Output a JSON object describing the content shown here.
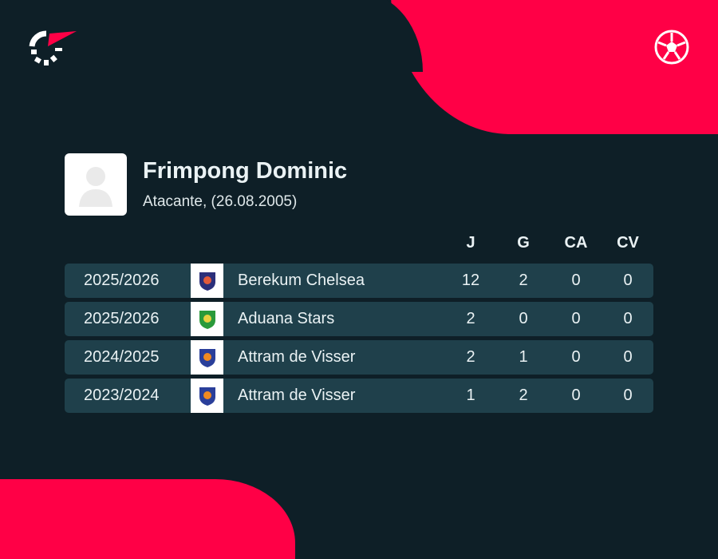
{
  "colors": {
    "accent": "#ff0046",
    "background": "#0e1f27",
    "row": "#1f404b"
  },
  "icons": {
    "logo": "flashscore-logo",
    "sport": "football-icon",
    "avatar": "player-silhouette"
  },
  "player": {
    "name": "Frimpong Dominic",
    "details": "Atacante, (26.08.2005)"
  },
  "columns": {
    "j": "J",
    "g": "G",
    "ca": "CA",
    "cv": "CV"
  },
  "rows": [
    {
      "season": "2025/2026",
      "team": "Berekum Chelsea",
      "j": "12",
      "g": "2",
      "ca": "0",
      "cv": "0"
    },
    {
      "season": "2025/2026",
      "team": "Aduana Stars",
      "j": "2",
      "g": "0",
      "ca": "0",
      "cv": "0"
    },
    {
      "season": "2024/2025",
      "team": "Attram de Visser",
      "j": "2",
      "g": "1",
      "ca": "0",
      "cv": "0"
    },
    {
      "season": "2023/2024",
      "team": "Attram de Visser",
      "j": "1",
      "g": "2",
      "ca": "0",
      "cv": "0"
    }
  ]
}
